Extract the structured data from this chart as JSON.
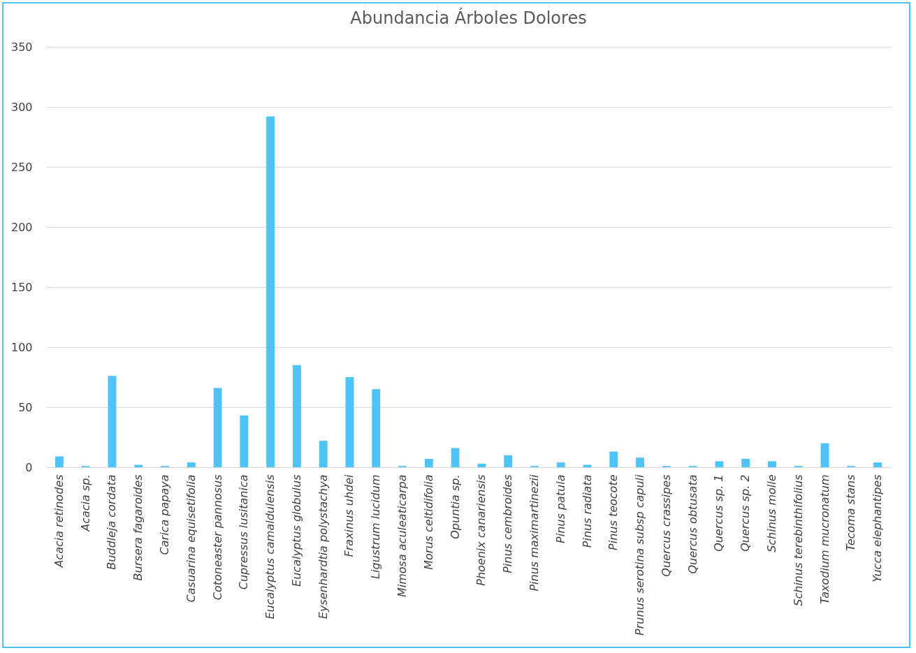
{
  "chart_data": {
    "type": "bar",
    "title": "Abundancia Árboles Dolores",
    "categories": [
      "Acacia retinodes",
      "Acacia sp.",
      "Buddleja cordata",
      "Bursera fagaroides",
      "Carica papaya",
      "Casuarina equisetifolia",
      "Cotoneaster pannosus",
      "Cupressus lusitanica",
      "Eucalyptus camaldulensis",
      "Eucalyptus globulus",
      "Eysenhardtia polystachya",
      "Fraxinus uhdei",
      "Ligustrum lucidum",
      "Mimosa aculeaticarpa",
      "Morus celtidifolia",
      "Opuntia sp.",
      "Phoenix canariensis",
      "Pinus cembroides",
      "Pinus maximartinezii",
      "Pinus patula",
      "Pinus radiata",
      "Pinus teocote",
      "Prunus serotina subsp capuli",
      "Quercus crassipes",
      "Quercus obtusata",
      "Quercus sp. 1",
      "Quercus sp. 2",
      "Schinus molle",
      "Schinus terebinthifolius",
      "Taxodium mucronatum",
      "Tecoma stans",
      "Yucca elephantipes"
    ],
    "values": [
      9,
      1,
      76,
      2,
      1,
      4,
      66,
      43,
      292,
      85,
      22,
      75,
      65,
      1,
      7,
      16,
      3,
      10,
      1,
      4,
      2,
      13,
      8,
      1,
      1,
      5,
      7,
      5,
      1,
      20,
      1,
      4
    ],
    "color": "#4fc3f7",
    "ylim": [
      0,
      350
    ],
    "yticks": [
      0,
      50,
      100,
      150,
      200,
      250,
      300,
      350
    ],
    "grid": "y"
  }
}
